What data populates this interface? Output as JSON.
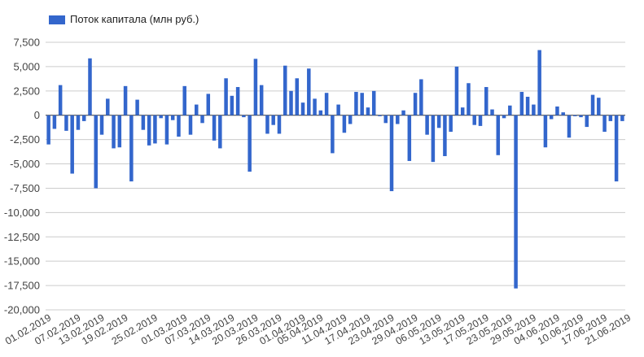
{
  "chart_data": {
    "type": "bar",
    "legend": {
      "label": "Поток капитала (млн руб.)",
      "position": "top-left"
    },
    "color": "#3366cc",
    "grid": true,
    "ylim": [
      -20000,
      7500
    ],
    "yticks": [
      7500,
      5000,
      2500,
      0,
      -2500,
      -5000,
      -7500,
      -10000,
      -12500,
      -15000,
      -17500,
      -20000
    ],
    "ytick_labels": [
      "7,500",
      "5,000",
      "2,500",
      "0",
      "-2,500",
      "-5,000",
      "-7,500",
      "-10,000",
      "-12,500",
      "-15,000",
      "-17,500",
      "-20,000"
    ],
    "xtick_labels": [
      {
        "index": 0,
        "label": "01.02.2019"
      },
      {
        "index": 5,
        "label": "07.02.2019"
      },
      {
        "index": 9,
        "label": "13.02.2019"
      },
      {
        "index": 13,
        "label": "19.02.2019"
      },
      {
        "index": 18,
        "label": "25.02.2019"
      },
      {
        "index": 23,
        "label": "01.03.2019"
      },
      {
        "index": 27,
        "label": "07.03.2019"
      },
      {
        "index": 31,
        "label": "14.03.2019"
      },
      {
        "index": 35,
        "label": "20.03.2019"
      },
      {
        "index": 39,
        "label": "26.03.2019"
      },
      {
        "index": 43,
        "label": "01.04.2019"
      },
      {
        "index": 46,
        "label": "05.04.2019"
      },
      {
        "index": 50,
        "label": "11.04.2019"
      },
      {
        "index": 54,
        "label": "17.04.2019"
      },
      {
        "index": 58,
        "label": "23.04.2019"
      },
      {
        "index": 62,
        "label": "29.04.2019"
      },
      {
        "index": 66,
        "label": "06.05.2019"
      },
      {
        "index": 70,
        "label": "13.05.2019"
      },
      {
        "index": 74,
        "label": "17.05.2019"
      },
      {
        "index": 78,
        "label": "23.05.2019"
      },
      {
        "index": 82,
        "label": "29.05.2019"
      },
      {
        "index": 86,
        "label": "04.06.2019"
      },
      {
        "index": 90,
        "label": "10.06.2019"
      },
      {
        "index": 94,
        "label": "17.06.2019"
      },
      {
        "index": 98,
        "label": "21.06.2019"
      }
    ],
    "values": [
      -3000,
      -1400,
      3100,
      -1600,
      -6000,
      -1500,
      -600,
      5850,
      -7500,
      -2000,
      1700,
      -3400,
      -3300,
      3000,
      -6800,
      1600,
      -1500,
      -3100,
      -2900,
      -300,
      -3000,
      -500,
      -2200,
      3000,
      -2000,
      1100,
      -800,
      2200,
      -2600,
      -3400,
      3800,
      2000,
      2900,
      -200,
      -5800,
      5800,
      3100,
      -1900,
      -1000,
      -1900,
      5100,
      2500,
      3800,
      1300,
      4800,
      1700,
      500,
      2300,
      -3900,
      1100,
      -1800,
      -900,
      2400,
      2300,
      800,
      2500,
      -100,
      -800,
      -7800,
      -900,
      500,
      -4700,
      2300,
      3700,
      -2000,
      -4800,
      -1300,
      -4200,
      -1700,
      5000,
      800,
      3300,
      -1000,
      -1100,
      2900,
      600,
      -4100,
      -300,
      1000,
      -17800,
      2400,
      1900,
      1100,
      6700,
      -3300,
      -400,
      900,
      300,
      -2300,
      -100,
      -200,
      -1200,
      2100,
      1800,
      -1700,
      -600,
      -6800,
      -600
    ]
  }
}
